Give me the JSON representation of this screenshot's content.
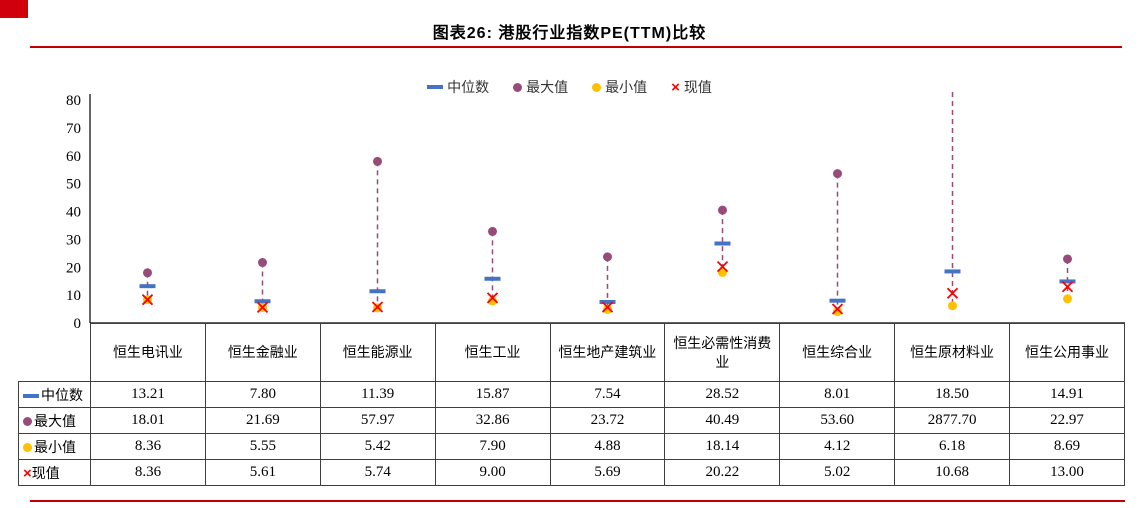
{
  "title": "图表26: 港股行业指数PE(TTM)比较",
  "colors": {
    "accent_red": "#C00000",
    "corner_red": "#D0000C",
    "median_blue": "#4472C4",
    "max_plum": "#964B79",
    "min_yellow": "#FFC000",
    "current_red": "#FF0000",
    "table_border": "#3f3f3f"
  },
  "chart_data": {
    "type": "scatter",
    "title": "图表26: 港股行业指数PE(TTM)比较",
    "xlabel": "",
    "ylabel": "",
    "ylim": [
      0,
      80
    ],
    "ytick_step": 10,
    "grid": false,
    "legend_position": "top",
    "range_line": {
      "style": "dashed",
      "color": "#964B79"
    },
    "categories": [
      "恒生电讯业",
      "恒生金融业",
      "恒生能源业",
      "恒生工业",
      "恒生地产建筑业",
      "恒生必需性消费业",
      "恒生综合业",
      "恒生原材料业",
      "恒生公用事业"
    ],
    "series": [
      {
        "name": "中位数",
        "marker": "dash",
        "color": "#4472C4",
        "values": [
          13.21,
          7.8,
          11.39,
          15.87,
          7.54,
          28.52,
          8.01,
          18.5,
          14.91
        ]
      },
      {
        "name": "最大值",
        "marker": "circle",
        "color": "#964B79",
        "values": [
          18.01,
          21.69,
          57.97,
          32.86,
          23.72,
          40.49,
          53.6,
          2877.7,
          22.97
        ]
      },
      {
        "name": "最小值",
        "marker": "circle",
        "color": "#FFC000",
        "values": [
          8.36,
          5.55,
          5.42,
          7.9,
          4.88,
          18.14,
          4.12,
          6.18,
          8.69
        ]
      },
      {
        "name": "现值",
        "marker": "x",
        "color": "#FF0000",
        "values": [
          8.36,
          5.61,
          5.74,
          9.0,
          5.69,
          20.22,
          5.02,
          10.68,
          13.0
        ]
      }
    ]
  },
  "table": {
    "row_headers": [
      "中位数",
      "最大值",
      "最小值",
      "现值"
    ],
    "columns": [
      "恒生电讯业",
      "恒生金融业",
      "恒生能源业",
      "恒生工业",
      "恒生地产建筑业",
      "恒生必需性消费业",
      "恒生综合业",
      "恒生原材料业",
      "恒生公用事业"
    ],
    "rows": [
      [
        "13.21",
        "7.80",
        "11.39",
        "15.87",
        "7.54",
        "28.52",
        "8.01",
        "18.50",
        "14.91"
      ],
      [
        "18.01",
        "21.69",
        "57.97",
        "32.86",
        "23.72",
        "40.49",
        "53.60",
        "2877.70",
        "22.97"
      ],
      [
        "8.36",
        "5.55",
        "5.42",
        "7.90",
        "4.88",
        "18.14",
        "4.12",
        "6.18",
        "8.69"
      ],
      [
        "8.36",
        "5.61",
        "5.74",
        "9.00",
        "5.69",
        "20.22",
        "5.02",
        "10.68",
        "13.00"
      ]
    ]
  }
}
